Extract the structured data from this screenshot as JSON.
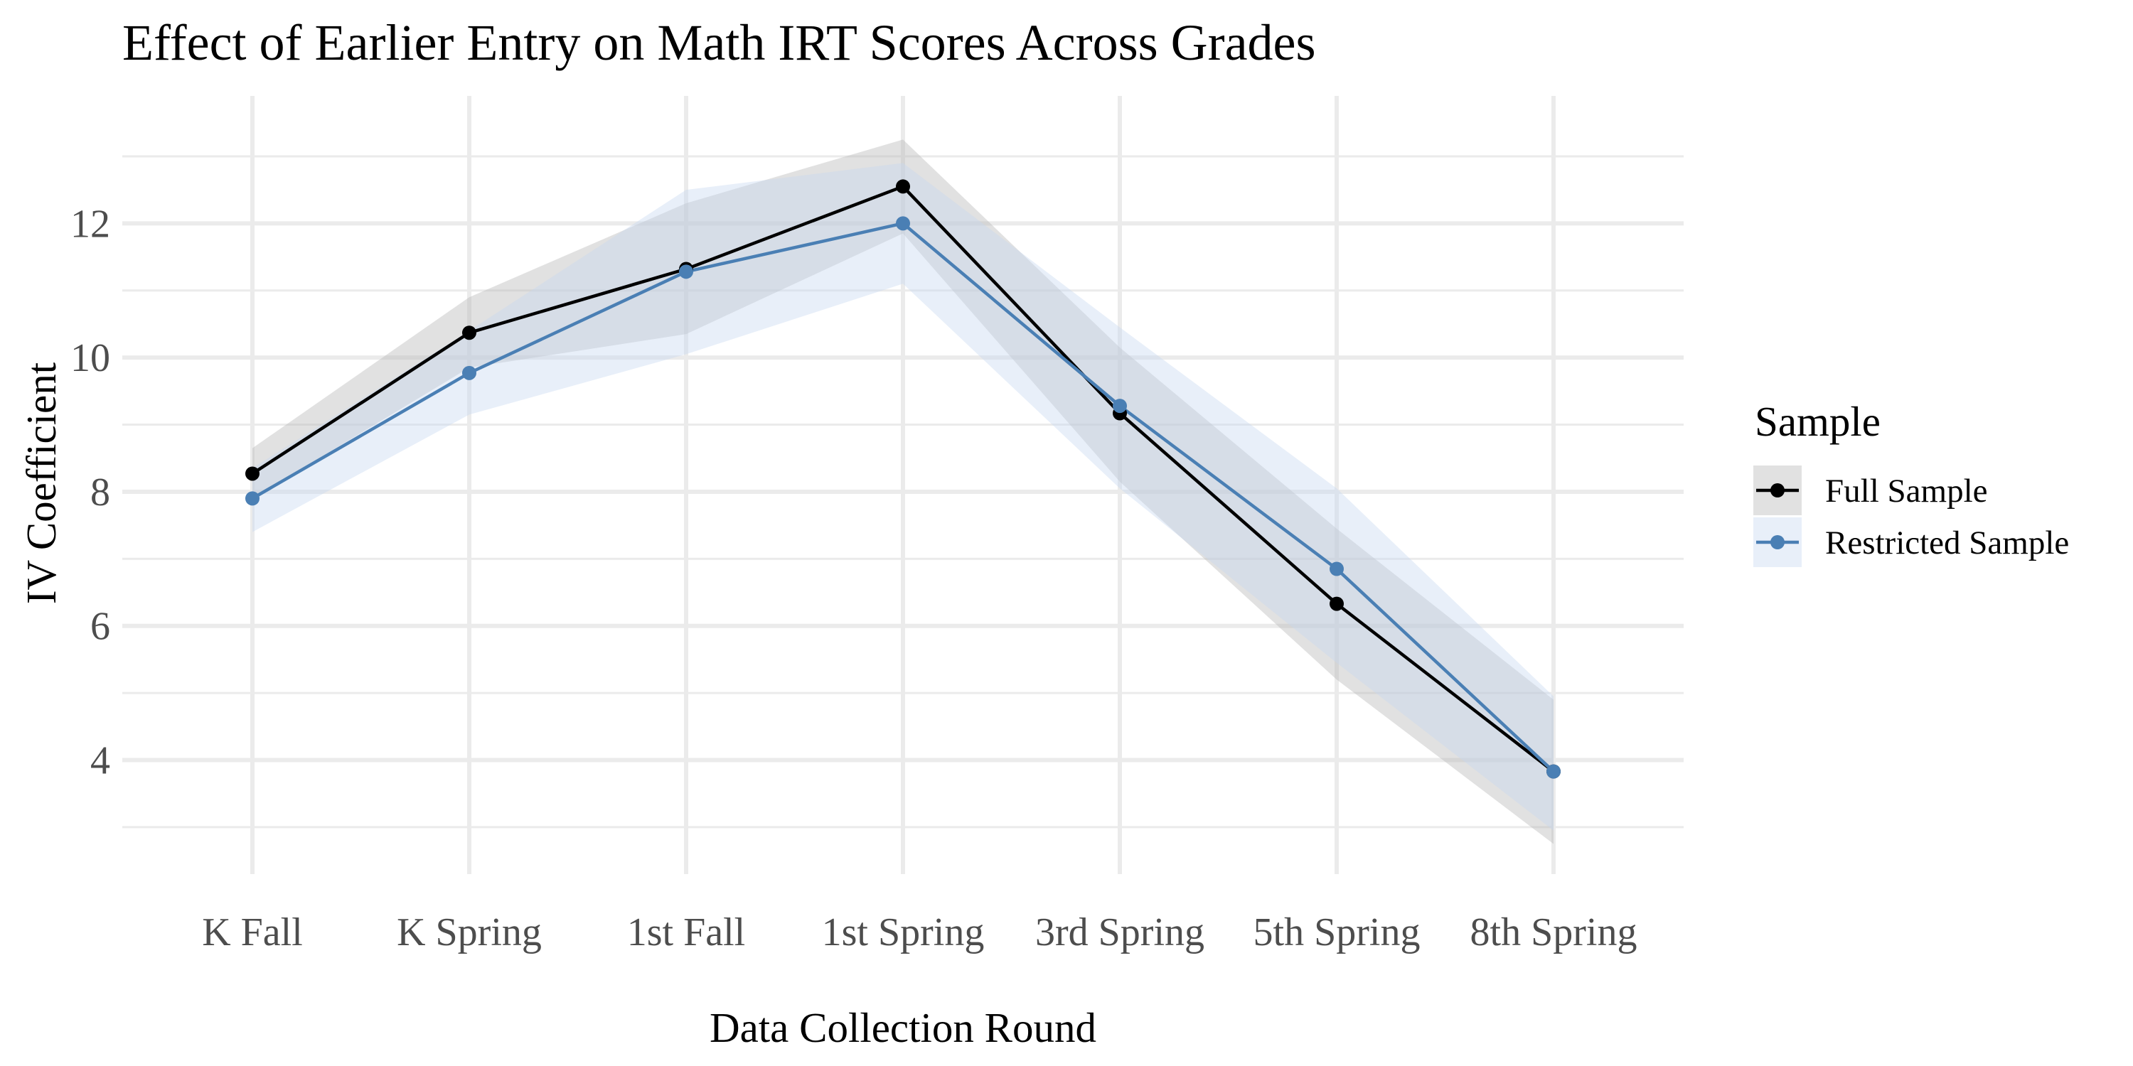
{
  "chart_data": {
    "type": "line",
    "title": "Effect of Earlier Entry on Math IRT Scores Across Grades",
    "xlabel": "Data Collection Round",
    "ylabel": "IV Coefficient",
    "categories": [
      "K Fall",
      "K Spring",
      "1st Fall",
      "1st Spring",
      "3rd Spring",
      "5th Spring",
      "8th Spring"
    ],
    "ylim": [
      2.3,
      13.9
    ],
    "yticks": [
      4,
      6,
      8,
      10,
      12
    ],
    "y_minor_ticks": [
      3,
      5,
      7,
      9,
      11,
      13
    ],
    "grid": true,
    "legend": {
      "title": "Sample",
      "placement": "right"
    },
    "series": [
      {
        "name": "Full Sample",
        "color": "#000000",
        "ribbon_color": "#b3b3b3",
        "values": [
          8.27,
          10.37,
          11.32,
          12.55,
          9.17,
          6.33,
          3.83
        ],
        "lower": [
          7.9,
          9.85,
          10.35,
          11.85,
          8.15,
          5.2,
          2.75
        ],
        "upper": [
          8.65,
          10.9,
          12.3,
          13.25,
          10.15,
          7.45,
          4.9
        ]
      },
      {
        "name": "Restricted Sample",
        "color": "#4a7fb4",
        "ribbon_color": "#c6d8ef",
        "values": [
          7.9,
          9.77,
          11.28,
          12.0,
          9.28,
          6.85,
          3.83
        ],
        "lower": [
          7.4,
          9.15,
          10.05,
          11.1,
          8.05,
          5.45,
          2.95
        ],
        "upper": [
          8.35,
          10.4,
          12.5,
          12.9,
          10.45,
          8.05,
          4.95
        ]
      }
    ]
  }
}
